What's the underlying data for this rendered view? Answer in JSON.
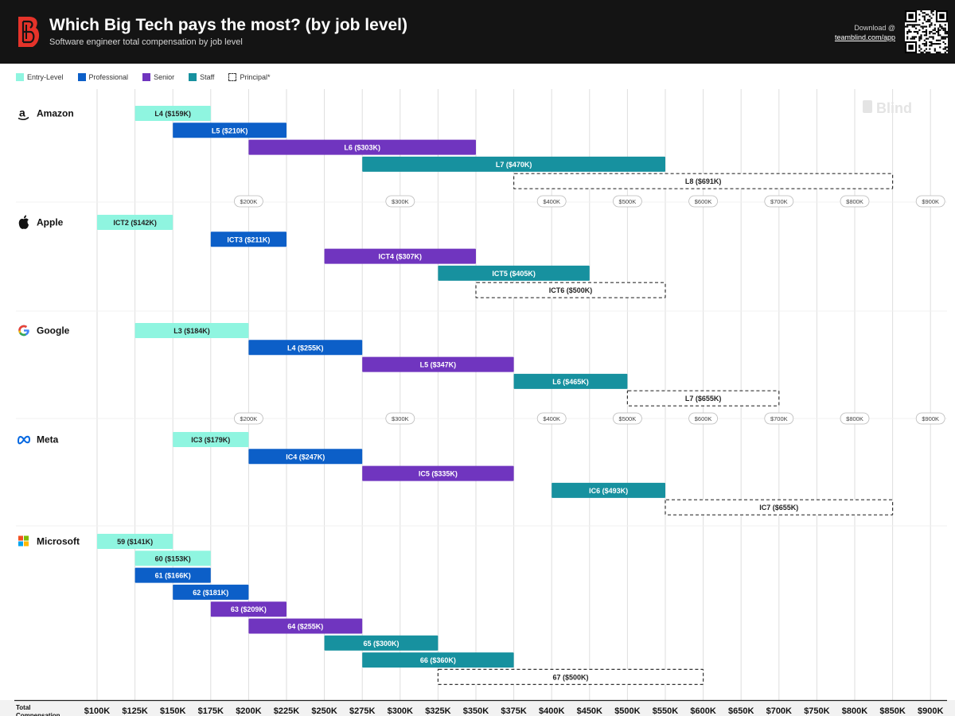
{
  "header": {
    "title": "Which Big Tech pays the most? (by job level)",
    "subtitle": "Software engineer total compensation by job level",
    "download_label": "Download @",
    "download_url": "teamblind.com/app"
  },
  "watermark": "Blind",
  "colors": {
    "Entry-Level": "#8ff5e0",
    "Professional": "#0c5fc8",
    "Senior": "#7035bf",
    "Staff": "#17919f",
    "Principal*": "#ffffff"
  },
  "chart_data": {
    "type": "bar",
    "orientation": "horizontal-range",
    "title": "Which Big Tech pays the most? (by job level)",
    "subtitle": "Software engineer total compensation by job level",
    "xlabel": "Total Compensation",
    "x_ticks": [
      {
        "label": "$100K",
        "value": 100
      },
      {
        "label": "$125K",
        "value": 125
      },
      {
        "label": "$150K",
        "value": 150
      },
      {
        "label": "$175K",
        "value": 175
      },
      {
        "label": "$200K",
        "value": 200
      },
      {
        "label": "$225K",
        "value": 225
      },
      {
        "label": "$250K",
        "value": 250
      },
      {
        "label": "$275K",
        "value": 275
      },
      {
        "label": "$300K",
        "value": 300
      },
      {
        "label": "$325K",
        "value": 325
      },
      {
        "label": "$350K",
        "value": 350
      },
      {
        "label": "$375K",
        "value": 375
      },
      {
        "label": "$400K",
        "value": 400
      },
      {
        "label": "$450K",
        "value": 450
      },
      {
        "label": "$500K",
        "value": 500
      },
      {
        "label": "$550K",
        "value": 550
      },
      {
        "label": "$600K",
        "value": 600
      },
      {
        "label": "$650K",
        "value": 650
      },
      {
        "label": "$700K",
        "value": 700
      },
      {
        "label": "$750K",
        "value": 750
      },
      {
        "label": "$800K",
        "value": 800
      },
      {
        "label": "$850K",
        "value": 850
      },
      {
        "label": "$900K",
        "value": 900
      }
    ],
    "reference_ticks": [
      {
        "label": "$200K",
        "value": 200
      },
      {
        "label": "$300K",
        "value": 300
      },
      {
        "label": "$400K",
        "value": 400
      },
      {
        "label": "$500K",
        "value": 500
      },
      {
        "label": "$600K",
        "value": 600
      },
      {
        "label": "$700K",
        "value": 700
      },
      {
        "label": "$800K",
        "value": 800
      },
      {
        "label": "$900K",
        "value": 900
      }
    ],
    "legend": [
      "Entry-Level",
      "Professional",
      "Senior",
      "Staff",
      "Principal*"
    ],
    "legend_position": "top-left",
    "companies": [
      {
        "name": "Amazon",
        "icon": "amazon-logo-icon",
        "levels": [
          {
            "label": "L4 ($159K)",
            "category": "Entry-Level",
            "start": 125,
            "end": 175
          },
          {
            "label": "L5 ($210K)",
            "category": "Professional",
            "start": 150,
            "end": 225
          },
          {
            "label": "L6 ($303K)",
            "category": "Senior",
            "start": 200,
            "end": 350
          },
          {
            "label": "L7 ($470K)",
            "category": "Staff",
            "start": 275,
            "end": 550
          },
          {
            "label": "L8 ($691K)",
            "category": "Principal*",
            "start": 375,
            "end": 850
          }
        ]
      },
      {
        "name": "Apple",
        "icon": "apple-logo-icon",
        "levels": [
          {
            "label": "ICT2 ($142K)",
            "category": "Entry-Level",
            "start": 100,
            "end": 150
          },
          {
            "label": "ICT3 ($211K)",
            "category": "Professional",
            "start": 175,
            "end": 225
          },
          {
            "label": "ICT4 ($307K)",
            "category": "Senior",
            "start": 250,
            "end": 350
          },
          {
            "label": "ICT5 ($405K)",
            "category": "Staff",
            "start": 325,
            "end": 450
          },
          {
            "label": "ICT6 ($500K)",
            "category": "Principal*",
            "start": 350,
            "end": 550
          }
        ]
      },
      {
        "name": "Google",
        "icon": "google-logo-icon",
        "levels": [
          {
            "label": "L3 ($184K)",
            "category": "Entry-Level",
            "start": 125,
            "end": 200
          },
          {
            "label": "L4 ($255K)",
            "category": "Professional",
            "start": 200,
            "end": 275
          },
          {
            "label": "L5 ($347K)",
            "category": "Senior",
            "start": 275,
            "end": 375
          },
          {
            "label": "L6 ($465K)",
            "category": "Staff",
            "start": 375,
            "end": 500
          },
          {
            "label": "L7 ($655K)",
            "category": "Principal*",
            "start": 500,
            "end": 700
          }
        ]
      },
      {
        "name": "Meta",
        "icon": "meta-logo-icon",
        "levels": [
          {
            "label": "IC3 ($179K)",
            "category": "Entry-Level",
            "start": 150,
            "end": 200
          },
          {
            "label": "IC4 ($247K)",
            "category": "Professional",
            "start": 200,
            "end": 275
          },
          {
            "label": "IC5 ($335K)",
            "category": "Senior",
            "start": 275,
            "end": 375
          },
          {
            "label": "IC6 ($493K)",
            "category": "Staff",
            "start": 400,
            "end": 550
          },
          {
            "label": "IC7 ($655K)",
            "category": "Principal*",
            "start": 550,
            "end": 850
          }
        ]
      },
      {
        "name": "Microsoft",
        "icon": "microsoft-logo-icon",
        "levels": [
          {
            "label": "59 ($141K)",
            "category": "Entry-Level",
            "start": 100,
            "end": 150
          },
          {
            "label": "60 ($153K)",
            "category": "Entry-Level",
            "start": 125,
            "end": 175
          },
          {
            "label": "61 ($166K)",
            "category": "Professional",
            "start": 125,
            "end": 175
          },
          {
            "label": "62 ($181K)",
            "category": "Professional",
            "start": 150,
            "end": 200
          },
          {
            "label": "63 ($209K)",
            "category": "Senior",
            "start": 175,
            "end": 225
          },
          {
            "label": "64 ($255K)",
            "category": "Senior",
            "start": 200,
            "end": 275
          },
          {
            "label": "65 ($300K)",
            "category": "Staff",
            "start": 250,
            "end": 325
          },
          {
            "label": "66 ($360K)",
            "category": "Staff",
            "start": 275,
            "end": 375
          },
          {
            "label": "67 ($500K)",
            "category": "Principal*",
            "start": 325,
            "end": 600
          }
        ]
      }
    ]
  }
}
